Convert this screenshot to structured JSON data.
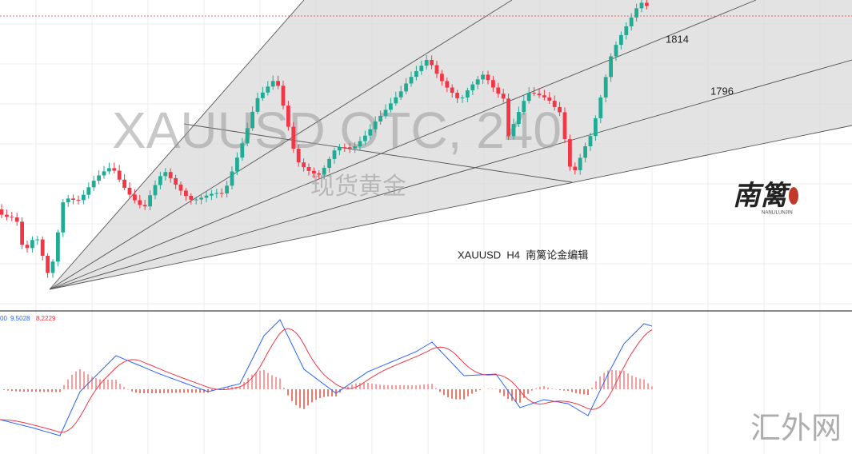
{
  "screen": {
    "watermark": "XAUUSD OTC, 240",
    "watermark_sub": "现货黄金",
    "caption": "XAUUSD  H4  南篱论金编辑",
    "levels": [
      "1814",
      "1796"
    ],
    "logo": "南篱",
    "logo_sub": "NANLILUNJIN",
    "indicator_values": [
      "00",
      "9.5028",
      "8.2229"
    ],
    "site": "汇外网"
  }
}
